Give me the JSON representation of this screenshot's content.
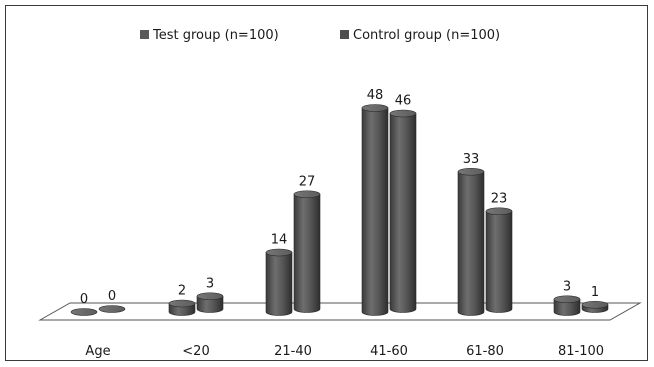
{
  "chart_data": {
    "type": "bar",
    "style": "3d-cylinder",
    "categories": [
      "Age",
      "<20",
      "21-40",
      "41-60",
      "61-80",
      "81-100"
    ],
    "series": [
      {
        "name": "Test group (n=100)",
        "values": [
          0,
          2,
          14,
          48,
          33,
          3
        ],
        "color": "#5a5a5a"
      },
      {
        "name": "Control group (n=100)",
        "values": [
          0,
          3,
          27,
          46,
          23,
          1
        ],
        "color": "#4e4e4e"
      }
    ],
    "title": "",
    "xlabel": "",
    "ylabel": "",
    "ylim": [
      0,
      50
    ],
    "grid": false,
    "legend_position": "top"
  }
}
